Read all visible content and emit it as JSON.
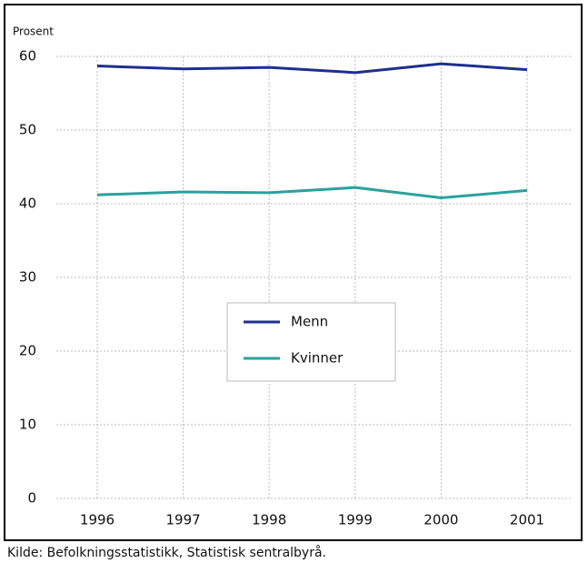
{
  "chart_data": {
    "type": "line",
    "y_axis_label": "Prosent",
    "categories": [
      "1996",
      "1997",
      "1998",
      "1999",
      "2000",
      "2001"
    ],
    "series": [
      {
        "name": "Menn",
        "color": "#1f2f8c",
        "values": [
          58.7,
          58.3,
          58.5,
          57.8,
          59.0,
          58.2
        ]
      },
      {
        "name": "Kvinner",
        "color": "#2aa19b",
        "values": [
          41.2,
          41.6,
          41.5,
          42.2,
          40.8,
          41.8
        ]
      }
    ],
    "ylim": [
      0,
      60
    ],
    "yticks": [
      0,
      10,
      20,
      30,
      40,
      50,
      60
    ],
    "grid": true,
    "source": "Kilde: Befolkningsstatistikk, Statistisk sentralbyrå."
  }
}
